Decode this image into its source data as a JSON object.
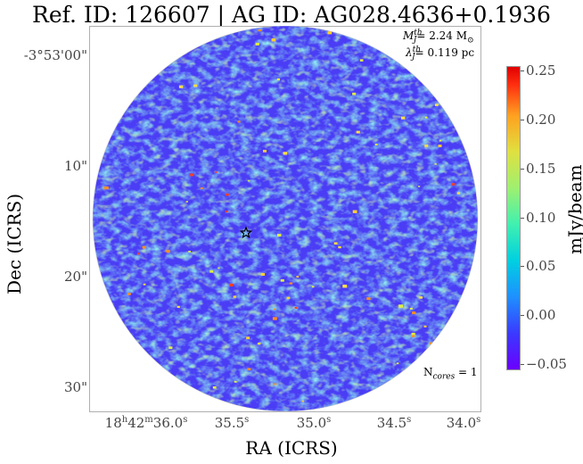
{
  "title": "Ref. ID: 126607 | AG ID: AG028.4636+0.1936",
  "annotations": {
    "mass_sym": "M",
    "mass_sup": "th",
    "mass_sub": "J",
    "mass_val": "= 2.24 M",
    "mass_unit": "⊙",
    "len_sym": "λ",
    "len_sup": "th",
    "len_sub": "J",
    "len_val": "= 0.119 pc",
    "cores_pre": "N",
    "cores_sub": "cores",
    "cores_val": " = 1"
  },
  "axes": {
    "ylabel": "Dec (ICRS)",
    "xlabel": "RA (ICRS)",
    "yticks": [
      "-3°53'00\"",
      "10\"",
      "20\"",
      "30\""
    ],
    "xticks": [
      {
        "h": "18",
        "hu": "h",
        "m": "42",
        "mu": "m",
        "s": "36.0",
        "su": "s"
      },
      {
        "s": "35.5",
        "su": "s"
      },
      {
        "s": "35.0",
        "su": "s"
      },
      {
        "s": "34.5",
        "su": "s"
      },
      {
        "s": "34.0",
        "su": "s"
      }
    ]
  },
  "colorbar": {
    "label": "mJy/beam",
    "ticks": [
      "0.25",
      "0.20",
      "0.15",
      "0.10",
      "0.05",
      "0.00",
      "−0.05"
    ],
    "colors": [
      "#6a00ff",
      "#3a3aff",
      "#1e90ff",
      "#00d0e0",
      "#40f0b0",
      "#9ff070",
      "#e0e040",
      "#ffa020",
      "#ff3010"
    ]
  },
  "marker": {
    "symbol": "star",
    "color": "#000000"
  }
}
